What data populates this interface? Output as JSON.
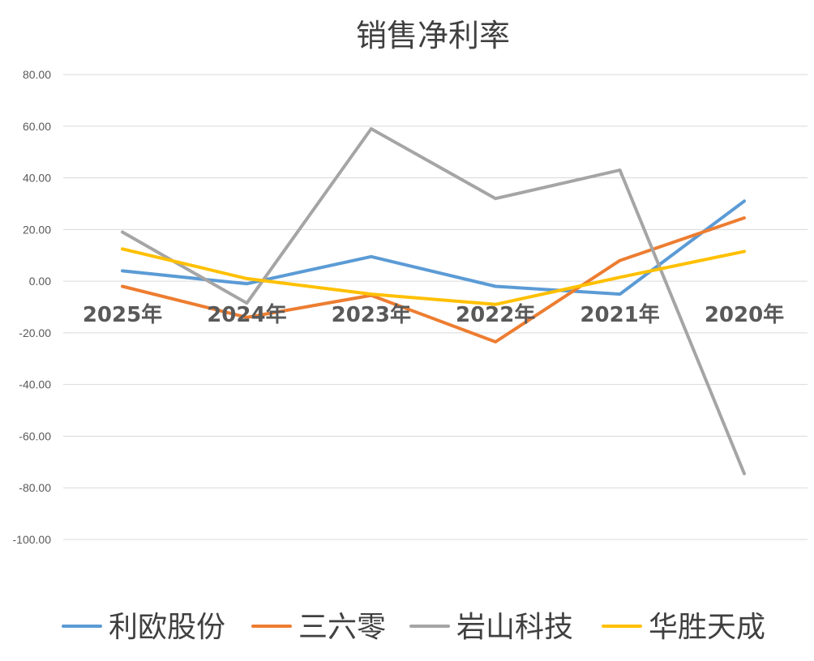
{
  "chart_data": {
    "type": "line",
    "title": "销售净利率",
    "xlabel": "",
    "ylabel": "",
    "categories": [
      "2025年",
      "2024年",
      "2023年",
      "2022年",
      "2021年",
      "2020年"
    ],
    "ylim": [
      -100,
      80
    ],
    "yticks": [
      "80.00",
      "60.00",
      "40.00",
      "20.00",
      "0.00",
      "-20.00",
      "-40.00",
      "-60.00",
      "-80.00",
      "-100.00"
    ],
    "grid": true,
    "legend": "bottom",
    "series": [
      {
        "name": "利欧股份",
        "color": "#5B9BD5",
        "values": [
          4.0,
          -1.0,
          9.5,
          -2.0,
          -5.0,
          31.0
        ]
      },
      {
        "name": "三六零",
        "color": "#ED7D31",
        "values": [
          -2.0,
          -14.0,
          -5.5,
          -23.5,
          8.0,
          24.5
        ]
      },
      {
        "name": "岩山科技",
        "color": "#A5A5A5",
        "values": [
          19.0,
          -8.5,
          59.0,
          32.0,
          43.0,
          -74.5
        ]
      },
      {
        "name": "华胜天成",
        "color": "#FFC000",
        "values": [
          12.5,
          1.0,
          -5.0,
          -9.0,
          1.5,
          11.5
        ]
      }
    ]
  }
}
